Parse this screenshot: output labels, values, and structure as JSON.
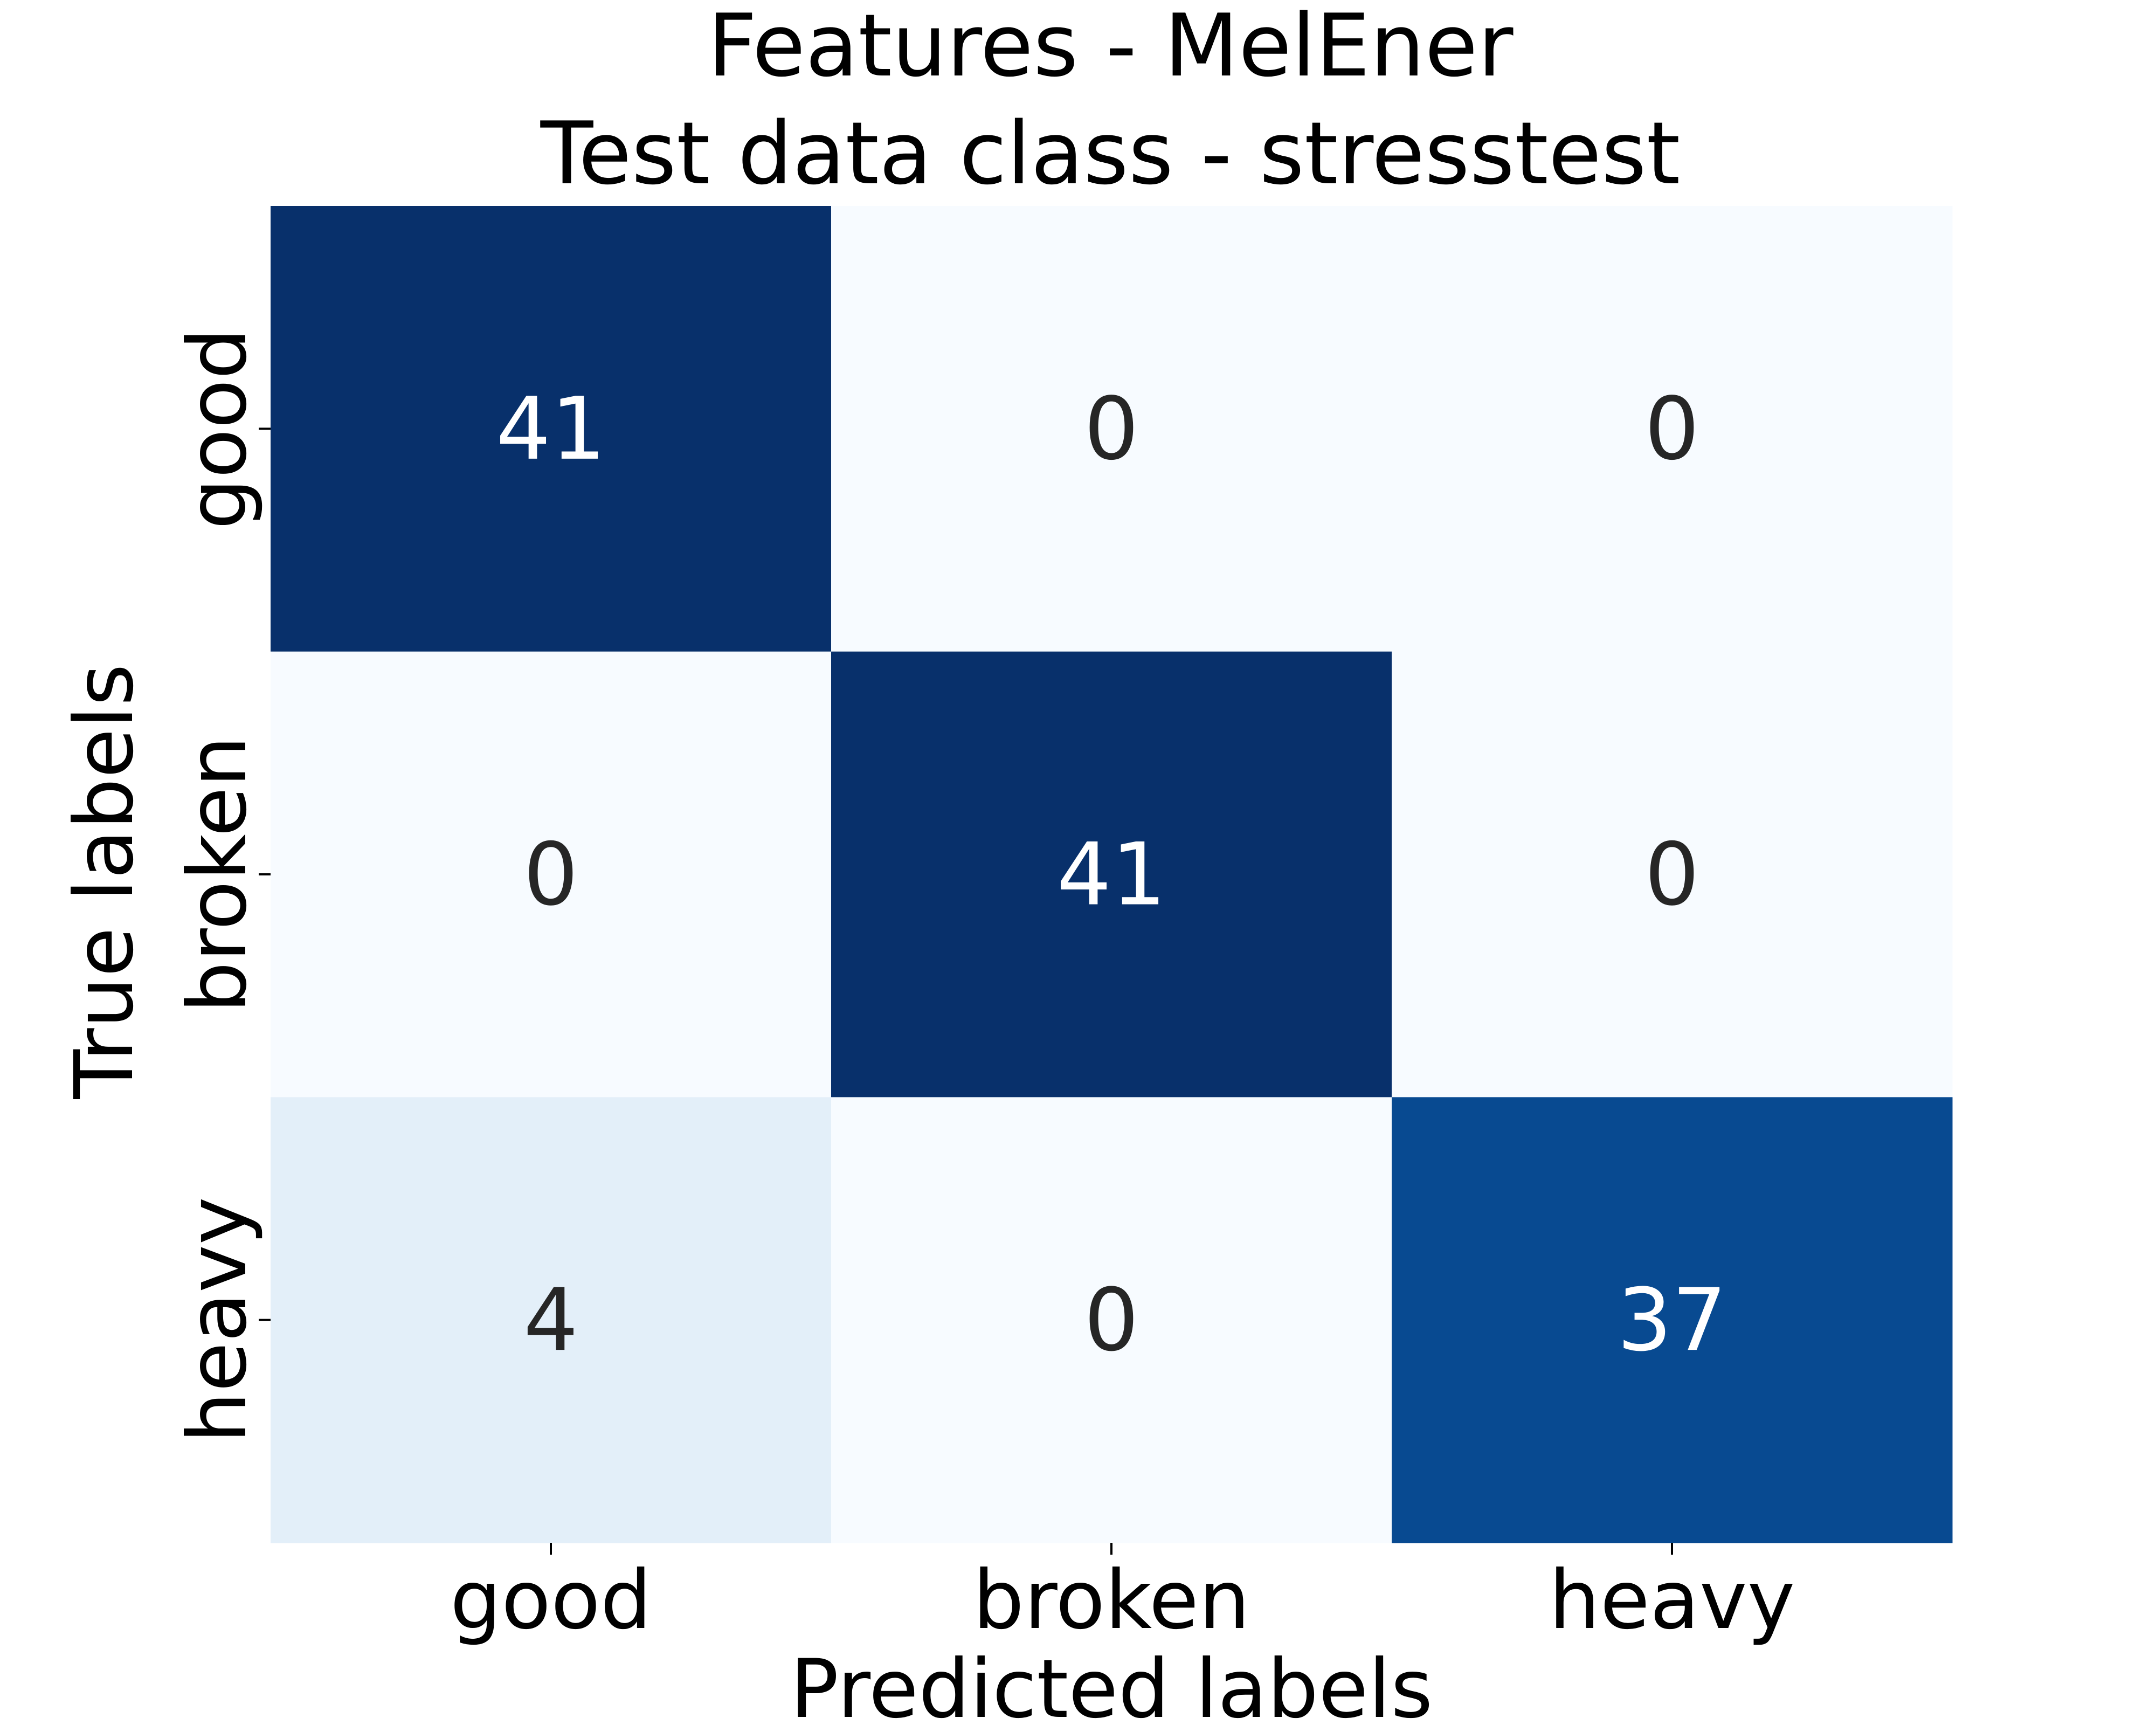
{
  "chart_data": {
    "type": "heatmap",
    "title_lines": [
      "Features - MelEner",
      "Test data class - stresstest"
    ],
    "xlabel": "Predicted labels",
    "ylabel": "True labels",
    "x_categories": [
      "good",
      "broken",
      "heavy"
    ],
    "y_categories": [
      "good",
      "broken",
      "heavy"
    ],
    "values": [
      [
        41,
        0,
        0
      ],
      [
        0,
        41,
        0
      ],
      [
        4,
        0,
        37
      ]
    ],
    "value_range": [
      0,
      41
    ],
    "colormap": "Blues",
    "colorbar": false,
    "grid": false,
    "annotation_color_dark": "#262626",
    "annotation_color_light": "#ffffff"
  }
}
